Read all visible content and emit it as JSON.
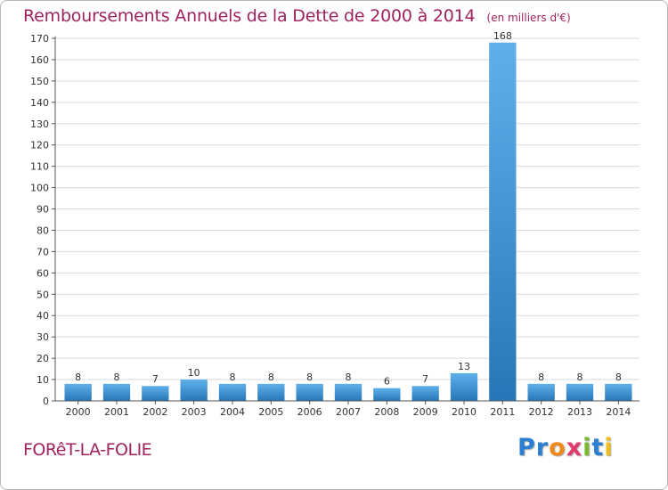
{
  "title": "Remboursements Annuels de la Dette de 2000 à 2014",
  "unit": "(en milliers d'€)",
  "town": "FORêT-LA-FOLIE",
  "brand": {
    "letters": [
      {
        "ch": "P",
        "color": "#2b7fd0"
      },
      {
        "ch": "r",
        "color": "#2b7fd0"
      },
      {
        "ch": "o",
        "color": "#f08a1c"
      },
      {
        "ch": "x",
        "color": "#e23a6a"
      },
      {
        "ch": "i",
        "color": "#7cba2f"
      },
      {
        "ch": "t",
        "color": "#2b7fd0"
      },
      {
        "ch": "i",
        "color": "#f0c020"
      }
    ]
  },
  "colors": {
    "title": "#a0225f",
    "bar_light": "#5fb0ea",
    "bar_dark": "#2777b8",
    "grid": "#d9d9d9"
  },
  "chart_data": {
    "type": "bar",
    "categories": [
      "2000",
      "2001",
      "2002",
      "2003",
      "2004",
      "2005",
      "2006",
      "2007",
      "2008",
      "2009",
      "2010",
      "2011",
      "2012",
      "2013",
      "2014"
    ],
    "values": [
      8,
      8,
      7,
      10,
      8,
      8,
      8,
      8,
      6,
      7,
      13,
      168,
      8,
      8,
      8
    ],
    "ylim": [
      0,
      170
    ],
    "yticks": [
      0,
      10,
      20,
      30,
      40,
      50,
      60,
      70,
      80,
      90,
      100,
      110,
      120,
      130,
      140,
      150,
      160,
      170
    ],
    "grid": true,
    "data_labels": true
  }
}
